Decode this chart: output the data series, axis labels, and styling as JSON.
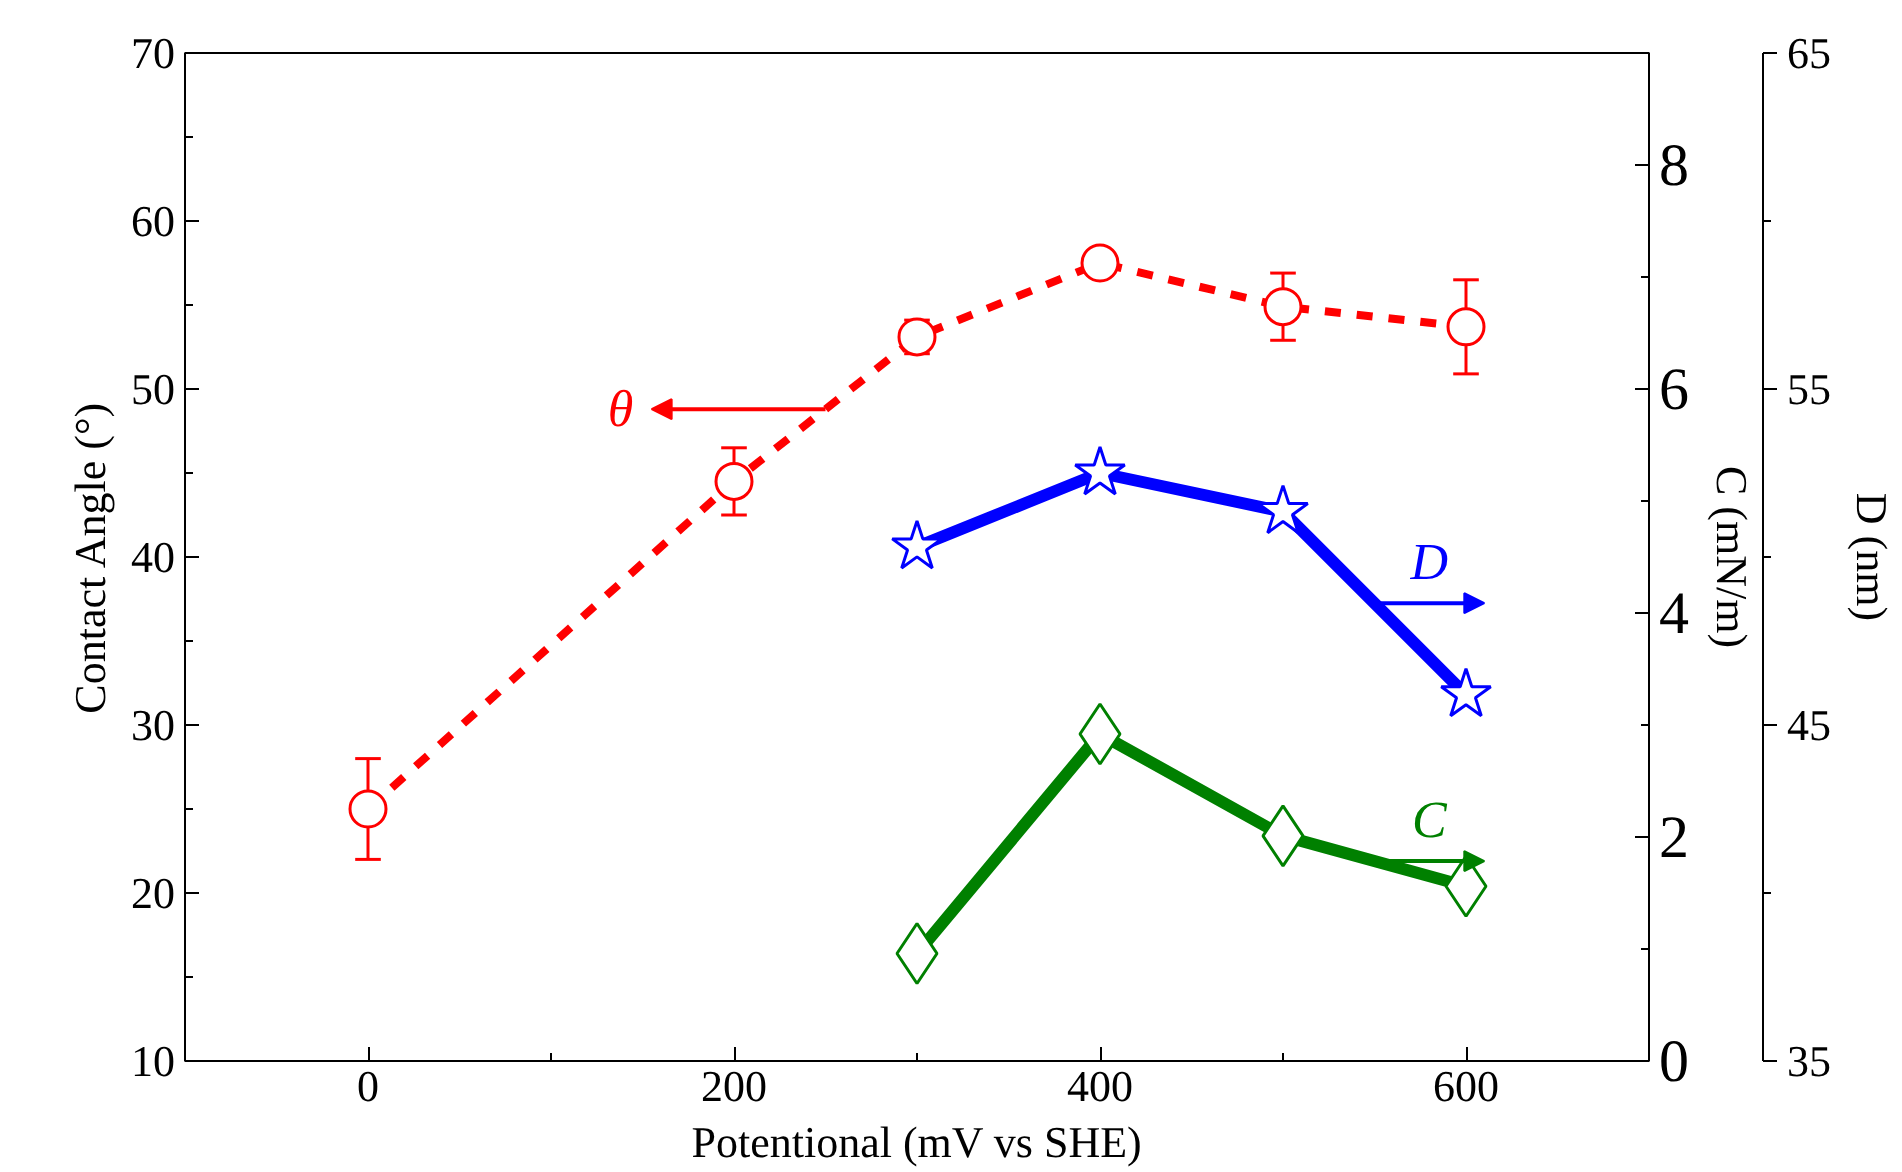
{
  "chart_data": {
    "type": "line",
    "xlabel": "Potentional (mV vs SHE)",
    "ylabel": "Contact Angle (°)",
    "y2label": "C (mN/m)",
    "y3label": "D (nm)",
    "xlim": [
      -100,
      700
    ],
    "xticks": [
      0,
      200,
      400,
      600
    ],
    "ylim": [
      10,
      70
    ],
    "yticks": [
      10,
      20,
      30,
      40,
      50,
      60,
      70
    ],
    "y2lim": [
      0,
      9
    ],
    "y2ticks": [
      0,
      2,
      4,
      6,
      8
    ],
    "y3lim": [
      35,
      65
    ],
    "y3ticks": [
      35,
      45,
      55,
      65
    ],
    "grid": false,
    "series": [
      {
        "name": "θ",
        "color": "#ff0000",
        "x": [
          0,
          200,
          300,
          400,
          500,
          600
        ],
        "values": [
          25.0,
          44.5,
          53.1,
          57.5,
          54.9,
          53.7
        ],
        "errors": [
          3,
          2,
          1,
          null,
          2,
          2.8
        ],
        "marker": "circle",
        "line_style": "dashed"
      },
      {
        "name": "D",
        "axis": "y3",
        "color": "#0000ff",
        "x": [
          300,
          400,
          500,
          600
        ],
        "values": [
          50.3,
          52.5,
          51.35,
          45.9
        ],
        "marker": "star",
        "line_style": "solid"
      },
      {
        "name": "C",
        "axis": "y2",
        "color": "#008000",
        "x": [
          300,
          400,
          500,
          600
        ],
        "values": [
          0.96,
          2.92,
          2.01,
          1.56
        ],
        "marker": "diamond",
        "line_style": "solid"
      }
    ]
  }
}
